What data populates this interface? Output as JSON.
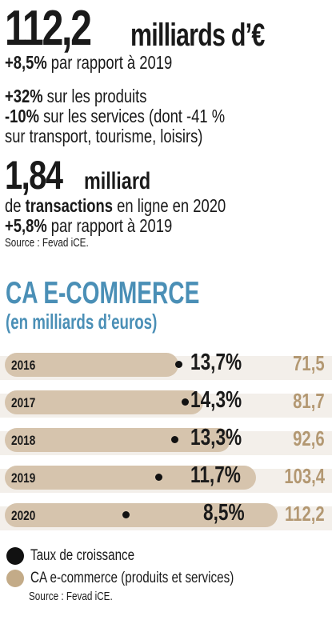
{
  "headline": {
    "value": "112,2",
    "unit": "milliards d’€",
    "growth_bold": "+8,5%",
    "growth_text": " par rapport à 2019",
    "products_bold": "+32%",
    "products_text": " sur les produits",
    "services_bold": "-10%",
    "services_text": " sur les services (dont -41 %",
    "services_text2": "sur transport, tourisme, loisirs)"
  },
  "transactions": {
    "value": "1,84",
    "unit": "milliard",
    "line_pre": "de ",
    "line_bold": "transactions",
    "line_post": " en ligne en 2020",
    "growth_bold": "+5,8%",
    "growth_text": " par rapport à 2019",
    "source": "Source : Fevad iCE."
  },
  "chart_title": "CA E-COMMERCE",
  "chart_subtitle": "(en milliards d’euros)",
  "chart_data": {
    "type": "bar",
    "categories": [
      "2016",
      "2017",
      "2018",
      "2019",
      "2020"
    ],
    "series": [
      {
        "name": "Taux de croissance",
        "values": [
          13.7,
          14.3,
          13.3,
          11.7,
          8.5
        ],
        "labels": [
          "13,7%",
          "14,3%",
          "13,3%",
          "11,7%",
          "8,5%"
        ],
        "color": "#111111"
      },
      {
        "name": "CA e-commerce (produits et services)",
        "values": [
          71.5,
          81.7,
          92.6,
          103.4,
          112.2
        ],
        "labels": [
          "71,5",
          "81,7",
          "92,6",
          "103,4",
          "112,2"
        ],
        "color": "#d6c4ad"
      }
    ],
    "title": "CA E-COMMERCE",
    "subtitle": "(en milliards d’euros)"
  },
  "legend": {
    "growth": "Taux de croissance",
    "ca": "CA e-commerce (produits et services)",
    "source": "Source : Fevad iCE."
  },
  "colors": {
    "title_blue": "#4a8fb6",
    "bar_beige": "#d6c4ad",
    "value_gold": "#b39872",
    "band": "#f3efea"
  }
}
